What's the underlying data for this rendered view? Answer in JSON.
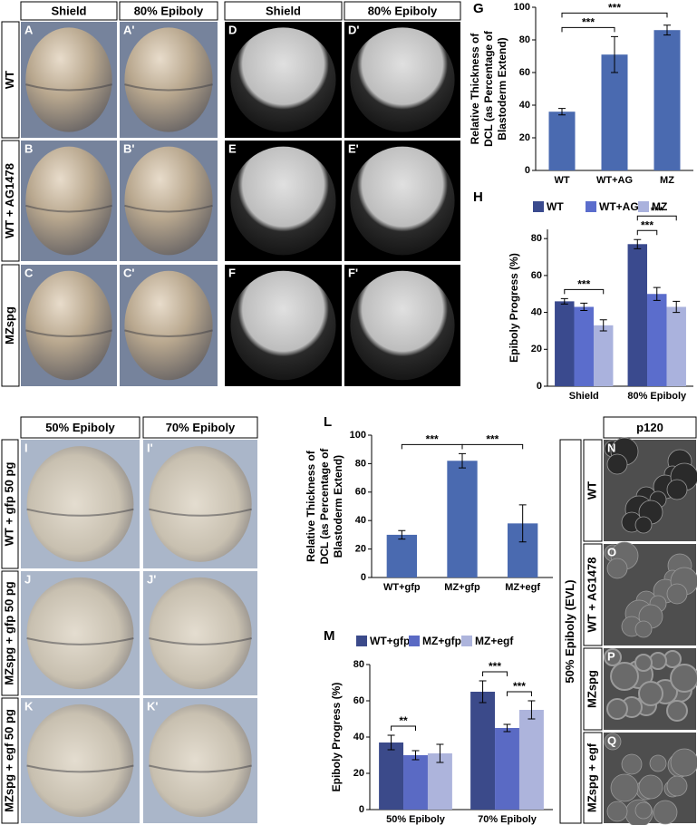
{
  "figure": {
    "top_left": {
      "headers": [
        "Shield",
        "80% Epiboly"
      ],
      "rows": [
        "WT",
        "WT + AG1478",
        "MZspg"
      ],
      "letters": [
        [
          "A",
          "A'"
        ],
        [
          "B",
          "B'"
        ],
        [
          "C",
          "C'"
        ]
      ]
    },
    "top_mid": {
      "headers": [
        "Shield",
        "80% Epiboly"
      ],
      "rows": [],
      "letters": [
        [
          "D",
          "D'"
        ],
        [
          "E",
          "E'"
        ],
        [
          "F",
          "F'"
        ]
      ]
    },
    "bottom_left": {
      "headers": [
        "50% Epiboly",
        "70% Epiboly"
      ],
      "rows": [
        "WT + gfp 50 pg",
        "MZspg + gfp 50 pg",
        "MZspg + egf 50 pg"
      ],
      "letters": [
        [
          "I",
          "I'"
        ],
        [
          "J",
          "J'"
        ],
        [
          "K",
          "K'"
        ]
      ]
    },
    "right": {
      "headers": [
        "p120"
      ],
      "side_label": "50% Epiboly (EVL)",
      "rows": [
        "WT",
        "WT + AG1478",
        "MZspg",
        "MZspg + egf"
      ],
      "letters": [
        [
          "N"
        ],
        [
          "O"
        ],
        [
          "P"
        ],
        [
          "Q"
        ]
      ]
    }
  },
  "chart_data": [
    {
      "type": "bar",
      "panel_label": "G",
      "ylabel": [
        "Relative Thickness of",
        "DCL (as Percentage of",
        "Blastoderm Extend)"
      ],
      "categories": [
        "WT",
        "WT+AG",
        "MZ"
      ],
      "values": [
        36,
        71,
        86
      ],
      "errors": [
        2,
        11,
        3
      ],
      "color": "#4a6ab0",
      "ylim": [
        0,
        100
      ],
      "yticks": [
        0,
        20,
        40,
        60,
        80,
        100
      ],
      "annotations": [
        {
          "between": [
            "WT",
            "WT+AG"
          ],
          "label": "***"
        },
        {
          "between": [
            "WT",
            "MZ"
          ],
          "label": "***"
        }
      ]
    },
    {
      "type": "grouped_bar",
      "panel_label": "H",
      "ylabel": [
        "Epiboly Progress (%)"
      ],
      "categories": [
        "Shield",
        "80% Epiboly"
      ],
      "series": [
        {
          "name": "WT",
          "color": "#3a4a8e",
          "values": [
            46,
            77
          ],
          "errors": [
            1.5,
            2.5
          ]
        },
        {
          "name": "WT+AG",
          "color": "#5b6dcc",
          "values": [
            43,
            50
          ],
          "errors": [
            2,
            3.5
          ]
        },
        {
          "name": "MZ",
          "color": "#aab2dd",
          "values": [
            33,
            43
          ],
          "errors": [
            3,
            3
          ]
        }
      ],
      "ylim": [
        0,
        85
      ],
      "yticks": [
        0,
        20,
        40,
        60,
        80
      ],
      "annotations": [
        {
          "category": "Shield",
          "between": [
            "WT",
            "MZ"
          ],
          "label": "***"
        },
        {
          "category": "80% Epiboly",
          "between": [
            "WT",
            "WT+AG"
          ],
          "label": "***"
        },
        {
          "category": "80% Epiboly",
          "between": [
            "WT",
            "MZ"
          ],
          "label": "***"
        }
      ]
    },
    {
      "type": "bar",
      "panel_label": "L",
      "ylabel": [
        "Relative Thickness of",
        "DCL (as Percentage of",
        "Blastoderm Extend)"
      ],
      "categories": [
        "WT+gfp",
        "MZ+gfp",
        "MZ+egf"
      ],
      "values": [
        30,
        82,
        38
      ],
      "errors": [
        3,
        5,
        13
      ],
      "color": "#4a6ab0",
      "ylim": [
        0,
        100
      ],
      "yticks": [
        0,
        20,
        40,
        60,
        80,
        100
      ],
      "annotations": [
        {
          "between": [
            "WT+gfp",
            "MZ+gfp"
          ],
          "label": "***"
        },
        {
          "between": [
            "MZ+gfp",
            "MZ+egf"
          ],
          "label": "***"
        }
      ]
    },
    {
      "type": "grouped_bar",
      "panel_label": "M",
      "ylabel": [
        "Epiboly Progress (%)"
      ],
      "categories": [
        "50% Epiboly",
        "70% Epiboly"
      ],
      "series": [
        {
          "name": "WT+gfp",
          "color": "#3b4a8a",
          "values": [
            37,
            65
          ],
          "errors": [
            4,
            6
          ]
        },
        {
          "name": "MZ+gfp",
          "color": "#5a6ac4",
          "values": [
            30,
            45
          ],
          "errors": [
            2.5,
            2
          ]
        },
        {
          "name": "MZ+egf",
          "color": "#adb4dc",
          "values": [
            31,
            55
          ],
          "errors": [
            5,
            5
          ]
        }
      ],
      "ylim": [
        0,
        80
      ],
      "yticks": [
        0,
        20,
        40,
        60,
        80
      ],
      "annotations": [
        {
          "category": "50% Epiboly",
          "between": [
            "WT+gfp",
            "MZ+gfp"
          ],
          "label": "**"
        },
        {
          "category": "70% Epiboly",
          "between": [
            "WT+gfp",
            "MZ+gfp"
          ],
          "label": "***"
        },
        {
          "category": "70% Epiboly",
          "between": [
            "MZ+gfp",
            "MZ+egf"
          ],
          "label": "***"
        }
      ]
    }
  ]
}
